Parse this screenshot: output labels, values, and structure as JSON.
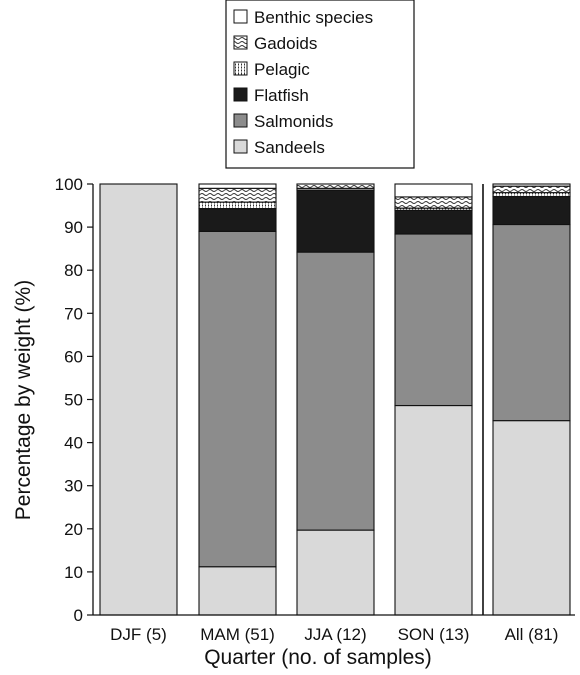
{
  "chart_data": {
    "type": "bar",
    "stacked": true,
    "categories": [
      "DJF (5)",
      "MAM (51)",
      "JJA (12)",
      "SON (13)",
      "All (81)"
    ],
    "xlabel": "Quarter (no. of samples)",
    "ylabel": "Percentage by weight (%)",
    "ylim": [
      0,
      100
    ],
    "yticks": [
      "0",
      "10",
      "20",
      "30",
      "40",
      "50",
      "60",
      "70",
      "80",
      "90",
      "100"
    ],
    "grid": false,
    "legend_position": "top-center",
    "series": [
      {
        "name": "Sandeels",
        "values": [
          100,
          11.2,
          19.7,
          48.6,
          45.1
        ],
        "color": "#d9d9d9",
        "pattern": "solid"
      },
      {
        "name": "Salmonids",
        "values": [
          0,
          77.8,
          64.5,
          39.8,
          45.5
        ],
        "color": "#8c8c8c",
        "pattern": "solid"
      },
      {
        "name": "Flatfish",
        "values": [
          0,
          5.3,
          14.4,
          5.5,
          6.5
        ],
        "color": "#1a1a1a",
        "pattern": "solid"
      },
      {
        "name": "Pelagic",
        "values": [
          0,
          1.5,
          0.4,
          0.5,
          0.9
        ],
        "color": "#ffffff",
        "pattern": "dots"
      },
      {
        "name": "Gadoids",
        "values": [
          0,
          3.2,
          1.0,
          2.6,
          1.5
        ],
        "color": "#ffffff",
        "pattern": "waves"
      },
      {
        "name": "Benthic species",
        "values": [
          0,
          1.0,
          0,
          3.0,
          0.5
        ],
        "color": "#ffffff",
        "pattern": "solid"
      }
    ],
    "legend_order": [
      "Benthic species",
      "Gadoids",
      "Pelagic",
      "Flatfish",
      "Salmonids",
      "Sandeels"
    ]
  }
}
